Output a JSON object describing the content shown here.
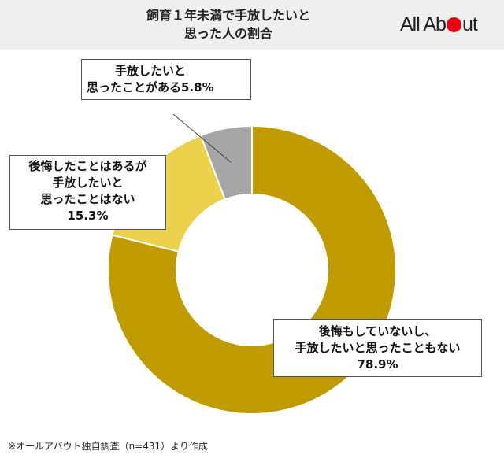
{
  "header": {
    "title_line1": "飼育１年未満で手放したいと",
    "title_line2": "思った人の割合",
    "logo_text_part1": "All Ab",
    "logo_text_part2": "ut",
    "logo_dot_color": "#e60012"
  },
  "chart_data": {
    "type": "pie",
    "donut": true,
    "title": "飼育１年未満で手放したいと思った人の割合",
    "slices": [
      {
        "label_lines": [
          "後悔もしていないし、",
          "手放したいと思ったこともない"
        ],
        "value": 78.9,
        "value_text": "78.9%",
        "color": "#bf9b00"
      },
      {
        "label_lines": [
          "後悔したことはあるが",
          "手放したいと",
          "思ったことはない"
        ],
        "value": 15.3,
        "value_text": "15.3%",
        "color": "#ecd14c"
      },
      {
        "label_lines": [
          "手放したいと",
          "思ったことがある"
        ],
        "value": 5.8,
        "value_text": "5.8%",
        "color": "#a6a6a6"
      }
    ],
    "start": "12 o'clock",
    "direction": "clockwise"
  },
  "footnote": "※オールアバウト独自調査（n=431）より作成"
}
